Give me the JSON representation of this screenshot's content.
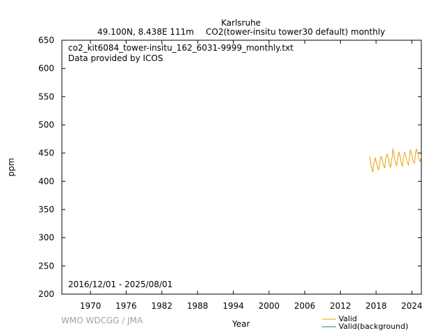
{
  "header": {
    "station": "Karlsruhe",
    "location": "49.100N, 8.438E 111m",
    "dataset": "CO2(tower-insitu tower30 default) monthly"
  },
  "annotations": {
    "filename": "co2_kit6084_tower-insitu_162_6031-9999_monthly.txt",
    "provider": "Data provided by ICOS",
    "period": "2016/12/01 - 2025/08/01"
  },
  "footer": {
    "credit": "WMO WDCGG / JMA"
  },
  "legend": {
    "valid_label": "Valid",
    "background_label": "Valid(background)",
    "valid_color": "#e8a000",
    "background_color": "#2e7d32"
  },
  "chart_data": {
    "type": "line",
    "xlabel": "Year",
    "ylabel": "ppm",
    "xlim": [
      1965.2,
      2025.6
    ],
    "ylim": [
      200,
      650
    ],
    "x_ticks": [
      1970,
      1976,
      1982,
      1988,
      1994,
      2000,
      2006,
      2012,
      2018,
      2024
    ],
    "y_ticks": [
      200,
      250,
      300,
      350,
      400,
      450,
      500,
      550,
      600,
      650
    ],
    "grid": false,
    "legend_position": "bottom-right",
    "series": [
      {
        "name": "Valid",
        "color": "#e8a000",
        "x": [
          "2016-12",
          "2017-01",
          "2017-02",
          "2017-03",
          "2017-04",
          "2017-05",
          "2017-06",
          "2017-07",
          "2017-08",
          "2017-09",
          "2017-10",
          "2017-11",
          "2017-12",
          "2018-01",
          "2018-02",
          "2018-03",
          "2018-04",
          "2018-05",
          "2018-06",
          "2018-07",
          "2018-08",
          "2018-09",
          "2018-10",
          "2018-11",
          "2018-12",
          "2019-01",
          "2019-02",
          "2019-03",
          "2019-04",
          "2019-05",
          "2019-06",
          "2019-07",
          "2019-08",
          "2019-09",
          "2019-10",
          "2019-11",
          "2019-12",
          "2020-01",
          "2020-02",
          "2020-03",
          "2020-04",
          "2020-05",
          "2020-06",
          "2020-07",
          "2020-08",
          "2020-09",
          "2020-10",
          "2020-11",
          "2020-12",
          "2021-01",
          "2021-02",
          "2021-03",
          "2021-04",
          "2021-05",
          "2021-06",
          "2021-07",
          "2021-08",
          "2021-09",
          "2021-10",
          "2021-11",
          "2021-12",
          "2022-01",
          "2022-02",
          "2022-03",
          "2022-04",
          "2022-05",
          "2022-06",
          "2022-07",
          "2022-08",
          "2022-09",
          "2022-10",
          "2022-11",
          "2022-12",
          "2023-01",
          "2023-02",
          "2023-03",
          "2023-04",
          "2023-05",
          "2023-06",
          "2023-07",
          "2023-08",
          "2023-09",
          "2023-10",
          "2023-11",
          "2023-12",
          "2024-01",
          "2024-02",
          "2024-03",
          "2024-04",
          "2024-05",
          "2024-06",
          "2024-07",
          "2024-08",
          "2024-09",
          "2024-10",
          "2024-11",
          "2024-12",
          "2025-01",
          "2025-02",
          "2025-03",
          "2025-04",
          "2025-05",
          "2025-06",
          "2025-07",
          "2025-08"
        ],
        "y": [
          445,
          437,
          434,
          428,
          424,
          420,
          416,
          422,
          431,
          433,
          436,
          442,
          439,
          435,
          432,
          428,
          425,
          423,
          421,
          426,
          434,
          437,
          440,
          444,
          442,
          439,
          436,
          431,
          428,
          426,
          424,
          429,
          438,
          443,
          446,
          448,
          446,
          443,
          440,
          433,
          429,
          427,
          425,
          430,
          437,
          440,
          446,
          458,
          452,
          448,
          444,
          437,
          433,
          430,
          428,
          432,
          440,
          443,
          448,
          452,
          449,
          445,
          442,
          435,
          431,
          429,
          427,
          432,
          442,
          446,
          451,
          450,
          448,
          445,
          441,
          436,
          433,
          431,
          429,
          434,
          442,
          448,
          455,
          453,
          451,
          448,
          444,
          438,
          435,
          433,
          432,
          436,
          445,
          451,
          457,
          456,
          453,
          450,
          446,
          441,
          438,
          436,
          435,
          440,
          444
        ]
      },
      {
        "name": "Valid(background)",
        "color": "#2e7d32",
        "x": [],
        "y": []
      }
    ]
  }
}
